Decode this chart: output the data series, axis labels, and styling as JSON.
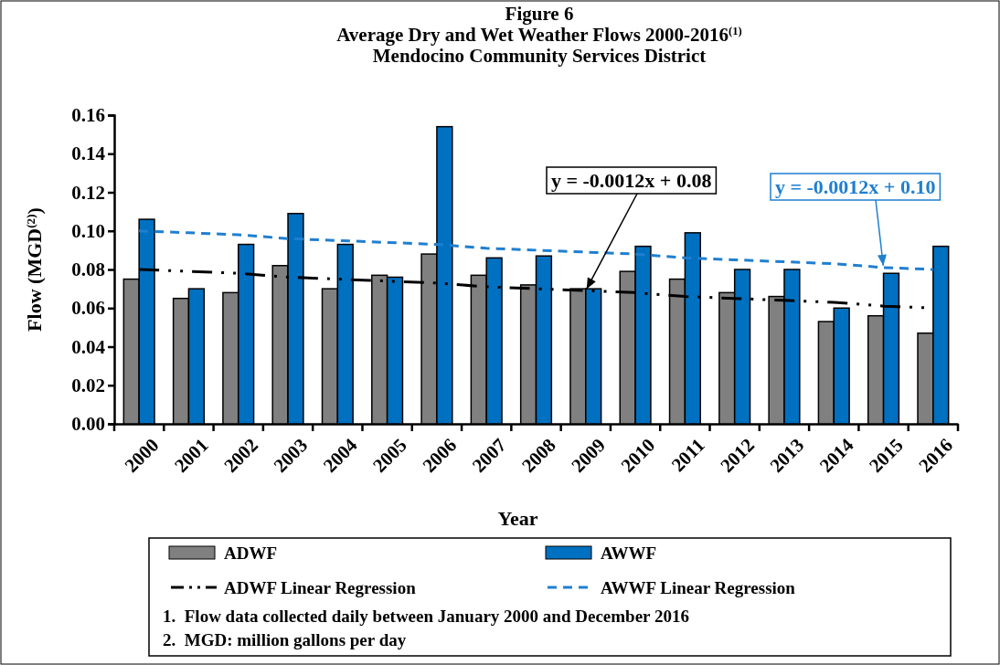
{
  "chart_data": {
    "type": "bar",
    "title": "Figure 6",
    "subtitle": "Average Dry and Wet Weather Flows 2000-2016$^{(1)}$\nMendocino Community Services District",
    "xlabel": "Year",
    "ylabel": "Flow (MGD$^{(2)}$)",
    "categories": [
      "2000",
      "2001",
      "2002",
      "2003",
      "2004",
      "2005",
      "2006",
      "2007",
      "2008",
      "2009",
      "2010",
      "2011",
      "2012",
      "2013",
      "2014",
      "2015",
      "2016"
    ],
    "series": [
      {
        "name": "ADWF",
        "color": "#808080",
        "values": [
          0.075,
          0.065,
          0.068,
          0.082,
          0.07,
          0.077,
          0.088,
          0.077,
          0.072,
          0.07,
          0.079,
          0.075,
          0.068,
          0.066,
          0.053,
          0.056,
          0.047
        ]
      },
      {
        "name": "AWWF",
        "color": "#0070c0",
        "values": [
          0.106,
          0.07,
          0.093,
          0.109,
          0.093,
          0.076,
          0.154,
          0.086,
          0.087,
          0.07,
          0.092,
          0.099,
          0.08,
          0.08,
          0.06,
          0.078,
          0.092
        ]
      },
      {
        "name": "ADWF Linear Regression",
        "type": "line",
        "color": "#000000",
        "line_style": "dotted",
        "values": [
          0.08,
          0.079,
          0.078,
          0.076,
          0.075,
          0.074,
          0.073,
          0.071,
          0.07,
          0.069,
          0.068,
          0.066,
          0.065,
          0.064,
          0.063,
          0.061,
          0.06
        ]
      },
      {
        "name": "AWWF Linear Regression",
        "type": "line",
        "color": "#1f7fd0",
        "line_style": "dashed",
        "values": [
          0.1,
          0.099,
          0.098,
          0.096,
          0.095,
          0.094,
          0.093,
          0.091,
          0.09,
          0.089,
          0.088,
          0.086,
          0.085,
          0.084,
          0.083,
          0.081,
          0.08
        ]
      }
    ],
    "ylim": [
      0,
      0.16
    ],
    "yticks": [
      {
        "value": 0,
        "label": "0.00"
      },
      {
        "value": 0.02,
        "label": "0.02"
      },
      {
        "value": 0.04,
        "label": "0.04"
      },
      {
        "value": 0.06,
        "label": "0.06"
      },
      {
        "value": 0.08,
        "label": "0.08"
      },
      {
        "value": 0.1,
        "label": "0.10"
      },
      {
        "value": 0.12,
        "label": "0.12"
      },
      {
        "value": 0.14,
        "label": "0.14"
      },
      {
        "value": 0.16,
        "label": "0.16"
      }
    ],
    "grid": false,
    "legend": "bottom",
    "annotations": [
      {
        "text": "y = -0.0012x + 0.08",
        "x": "2009",
        "y": 0.069
      },
      {
        "text": "y = -0.0012x + 0.10",
        "x": "2015",
        "y": 0.081
      },
      "1.  Flow data collected daily between January 2000 and December 2016",
      "2.  MGD: million gallons per day"
    ]
  }
}
